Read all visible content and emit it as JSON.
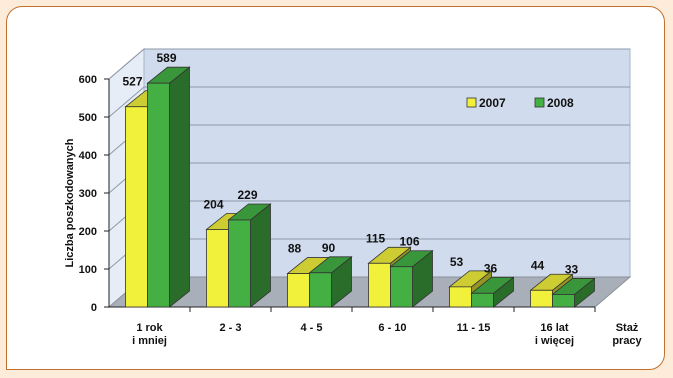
{
  "chart_data": {
    "type": "bar",
    "title": "",
    "xlabel": "Staż pracy",
    "ylabel": "Liczba poszkodowanych",
    "ylim": [
      0,
      600
    ],
    "y_ticks": [
      "0",
      "100",
      "200",
      "300",
      "400",
      "500",
      "600"
    ],
    "categories": [
      [
        "1 rok",
        "i mniej"
      ],
      [
        "2 - 3"
      ],
      [
        "4 - 5"
      ],
      [
        "6 - 10"
      ],
      [
        "11 - 15"
      ],
      [
        "16 lat",
        "i więcej"
      ]
    ],
    "x_title_lines": [
      "Staż",
      "pracy"
    ],
    "series": [
      {
        "name": "2007",
        "values": [
          527,
          204,
          88,
          115,
          53,
          44
        ],
        "color": "#f1f13c"
      },
      {
        "name": "2008",
        "values": [
          589,
          229,
          90,
          106,
          36,
          33
        ],
        "color": "#44b044"
      }
    ],
    "legend_position": "top-right",
    "grid": true,
    "style": "3d-column"
  }
}
